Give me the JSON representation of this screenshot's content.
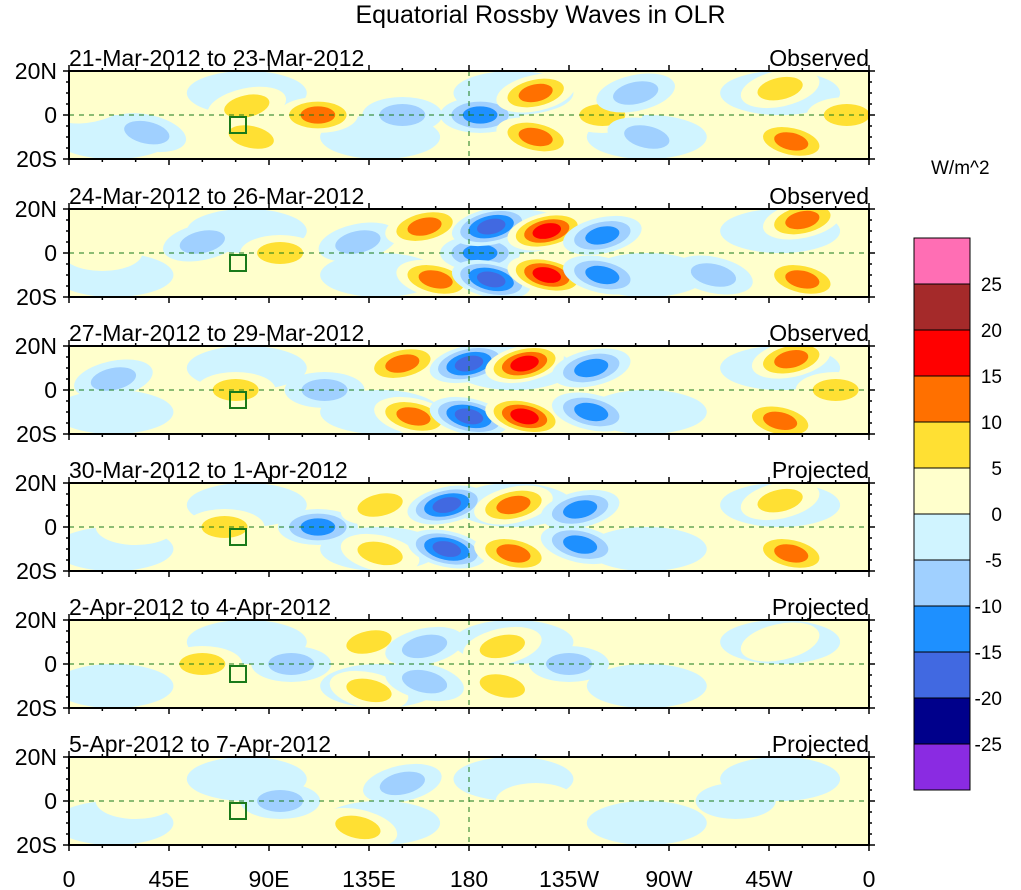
{
  "chart_data": {
    "type": "heatmap",
    "title": "Equatorial Rossby Waves in OLR",
    "units": "W/m^2",
    "xlabel": "",
    "ylabel": "",
    "x_ticks": [
      "0",
      "45E",
      "90E",
      "135E",
      "180",
      "135W",
      "90W",
      "45W",
      "0"
    ],
    "x_range_deg": [
      0,
      360
    ],
    "y_ticks": [
      "20N",
      "0",
      "20S"
    ],
    "y_range_deg": [
      -20,
      20
    ],
    "colorbar": {
      "levels": [
        25,
        20,
        15,
        10,
        5,
        0,
        -5,
        -10,
        -15,
        -20,
        -25
      ],
      "colors": [
        "#ff6eb4",
        "#a52a2a",
        "#ff0000",
        "#ff7000",
        "#ffe033",
        "#ffffcc",
        "#d0f4ff",
        "#a0d0ff",
        "#1e90ff",
        "#4169e1",
        "#00008b",
        "#8a2be2"
      ]
    },
    "panels": [
      {
        "date_range": "21-Mar-2012 to 23-Mar-2012",
        "status": "Observed",
        "anomalies": [
          {
            "lon": 10,
            "lat": 5,
            "val": 5
          },
          {
            "lon": 35,
            "lat": -8,
            "val": -6
          },
          {
            "lon": 80,
            "lat": 4,
            "val": 7
          },
          {
            "lon": 82,
            "lat": -10,
            "val": 8
          },
          {
            "lon": 112,
            "lat": 0,
            "val": 12
          },
          {
            "lon": 150,
            "lat": 0,
            "val": -7
          },
          {
            "lon": 185,
            "lat": 0,
            "val": -13
          },
          {
            "lon": 210,
            "lat": 10,
            "val": 12
          },
          {
            "lon": 210,
            "lat": -10,
            "val": 12
          },
          {
            "lon": 240,
            "lat": 0,
            "val": 8
          },
          {
            "lon": 255,
            "lat": 10,
            "val": -9
          },
          {
            "lon": 260,
            "lat": -10,
            "val": -8
          },
          {
            "lon": 320,
            "lat": 12,
            "val": 10
          },
          {
            "lon": 325,
            "lat": -12,
            "val": 11
          },
          {
            "lon": 350,
            "lat": 0,
            "val": 6
          }
        ]
      },
      {
        "date_range": "24-Mar-2012 to 26-Mar-2012",
        "status": "Observed",
        "anomalies": [
          {
            "lon": 15,
            "lat": 0,
            "val": 5
          },
          {
            "lon": 60,
            "lat": 5,
            "val": -6
          },
          {
            "lon": 95,
            "lat": 0,
            "val": 6
          },
          {
            "lon": 130,
            "lat": 5,
            "val": -8
          },
          {
            "lon": 160,
            "lat": 12,
            "val": 12
          },
          {
            "lon": 165,
            "lat": -12,
            "val": 11
          },
          {
            "lon": 185,
            "lat": 0,
            "val": -14
          },
          {
            "lon": 190,
            "lat": 12,
            "val": -18
          },
          {
            "lon": 190,
            "lat": -12,
            "val": -18
          },
          {
            "lon": 215,
            "lat": 10,
            "val": 17
          },
          {
            "lon": 215,
            "lat": -10,
            "val": 17
          },
          {
            "lon": 240,
            "lat": 8,
            "val": -12
          },
          {
            "lon": 240,
            "lat": -10,
            "val": -12
          },
          {
            "lon": 290,
            "lat": -10,
            "val": -10
          },
          {
            "lon": 330,
            "lat": 15,
            "val": 14
          },
          {
            "lon": 330,
            "lat": -12,
            "val": 14
          }
        ]
      },
      {
        "date_range": "27-Mar-2012 to 29-Mar-2012",
        "status": "Observed",
        "anomalies": [
          {
            "lon": 20,
            "lat": 5,
            "val": -6
          },
          {
            "lon": 75,
            "lat": 0,
            "val": 6
          },
          {
            "lon": 115,
            "lat": 0,
            "val": -10
          },
          {
            "lon": 150,
            "lat": 12,
            "val": 12
          },
          {
            "lon": 155,
            "lat": -12,
            "val": 12
          },
          {
            "lon": 180,
            "lat": 12,
            "val": -20
          },
          {
            "lon": 180,
            "lat": -12,
            "val": -20
          },
          {
            "lon": 205,
            "lat": 12,
            "val": 17
          },
          {
            "lon": 205,
            "lat": -12,
            "val": 17
          },
          {
            "lon": 235,
            "lat": 10,
            "val": -12
          },
          {
            "lon": 235,
            "lat": -10,
            "val": -12
          },
          {
            "lon": 325,
            "lat": 14,
            "val": 15
          },
          {
            "lon": 320,
            "lat": -14,
            "val": 15
          },
          {
            "lon": 345,
            "lat": 0,
            "val": 6
          }
        ]
      },
      {
        "date_range": "30-Mar-2012 to 1-Apr-2012",
        "status": "Projected",
        "anomalies": [
          {
            "lon": 30,
            "lat": 0,
            "val": 5
          },
          {
            "lon": 70,
            "lat": 0,
            "val": 6
          },
          {
            "lon": 112,
            "lat": 0,
            "val": -11
          },
          {
            "lon": 140,
            "lat": 10,
            "val": 8
          },
          {
            "lon": 140,
            "lat": -12,
            "val": 8
          },
          {
            "lon": 170,
            "lat": 10,
            "val": -16
          },
          {
            "lon": 170,
            "lat": -10,
            "val": -16
          },
          {
            "lon": 200,
            "lat": 10,
            "val": 14
          },
          {
            "lon": 200,
            "lat": -12,
            "val": 14
          },
          {
            "lon": 230,
            "lat": 8,
            "val": -11
          },
          {
            "lon": 230,
            "lat": -8,
            "val": -11
          },
          {
            "lon": 320,
            "lat": 12,
            "val": 9
          },
          {
            "lon": 325,
            "lat": -12,
            "val": 12
          }
        ]
      },
      {
        "date_range": "2-Apr-2012 to 4-Apr-2012",
        "status": "Projected",
        "anomalies": [
          {
            "lon": 60,
            "lat": 0,
            "val": 6
          },
          {
            "lon": 100,
            "lat": 0,
            "val": -6
          },
          {
            "lon": 135,
            "lat": 10,
            "val": 7
          },
          {
            "lon": 135,
            "lat": -12,
            "val": 7
          },
          {
            "lon": 160,
            "lat": 8,
            "val": -9
          },
          {
            "lon": 160,
            "lat": -8,
            "val": -9
          },
          {
            "lon": 195,
            "lat": 8,
            "val": 7
          },
          {
            "lon": 195,
            "lat": -10,
            "val": 7
          },
          {
            "lon": 225,
            "lat": 0,
            "val": -6
          },
          {
            "lon": 320,
            "lat": 10,
            "val": 5
          }
        ]
      },
      {
        "date_range": "5-Apr-2012 to 7-Apr-2012",
        "status": "Projected",
        "anomalies": [
          {
            "lon": 30,
            "lat": 0,
            "val": 4
          },
          {
            "lon": 95,
            "lat": 0,
            "val": -7
          },
          {
            "lon": 130,
            "lat": -12,
            "val": 6
          },
          {
            "lon": 150,
            "lat": 8,
            "val": -6
          },
          {
            "lon": 210,
            "lat": 0,
            "val": 4
          },
          {
            "lon": 300,
            "lat": 0,
            "val": -4
          }
        ]
      }
    ]
  }
}
